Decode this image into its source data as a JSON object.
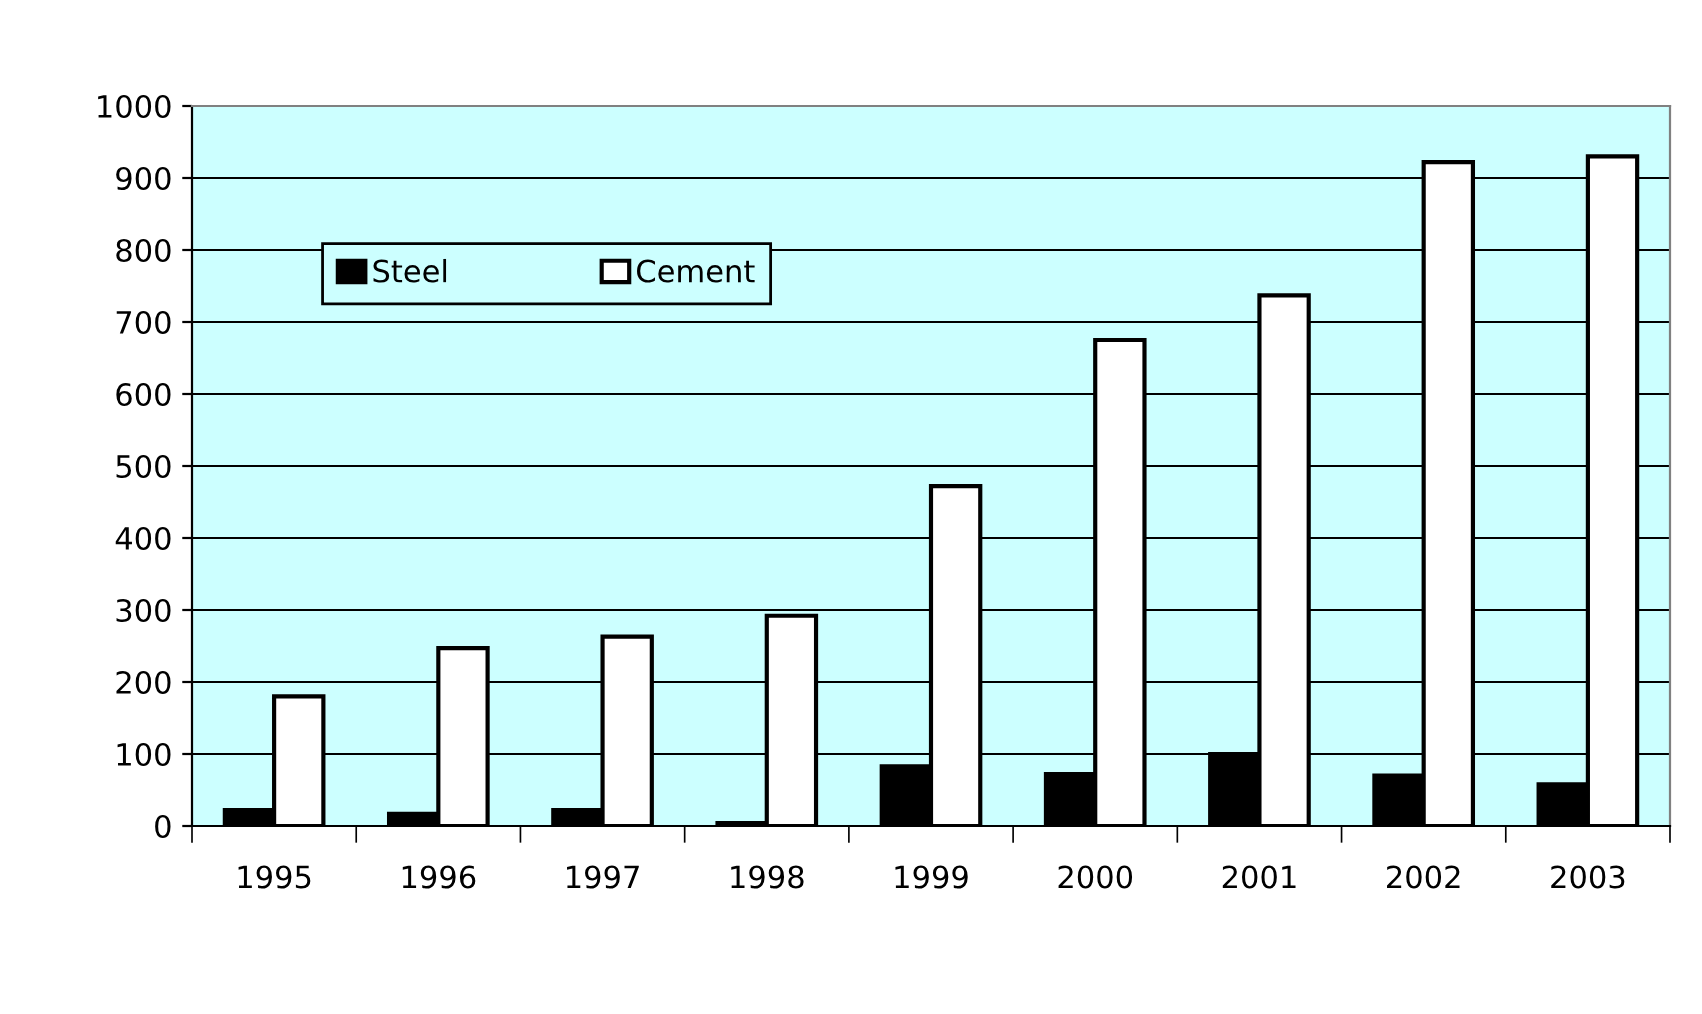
{
  "chart_data": {
    "type": "bar",
    "categories": [
      "1995",
      "1996",
      "1997",
      "1998",
      "1999",
      "2000",
      "2001",
      "2002",
      "2003"
    ],
    "series": [
      {
        "name": "Steel",
        "color": "#000000",
        "values": [
          22,
          17,
          22,
          4,
          83,
          72,
          100,
          70,
          58
        ]
      },
      {
        "name": "Cement",
        "color": "#ffffff",
        "values": [
          180,
          247,
          263,
          292,
          472,
          675,
          737,
          922,
          930
        ]
      }
    ],
    "ylim": [
      0,
      1000
    ],
    "yticks": [
      0,
      100,
      200,
      300,
      400,
      500,
      600,
      700,
      800,
      900,
      1000
    ],
    "grid": "y",
    "legend": "top left"
  }
}
